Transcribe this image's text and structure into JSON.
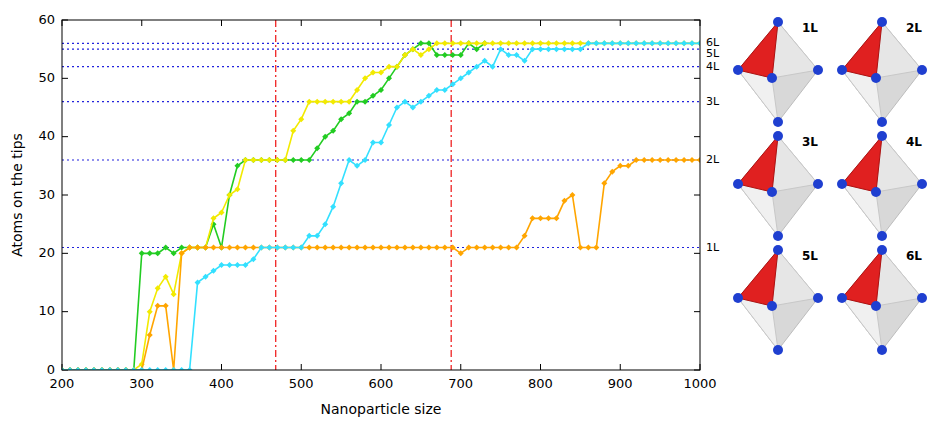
{
  "chart_data": {
    "type": "line",
    "x_label": "Nanoparticle size",
    "y_label": "Atoms on the tips",
    "xlim": [
      200,
      1000
    ],
    "ylim": [
      0,
      60
    ],
    "xticks": [
      200,
      300,
      400,
      500,
      600,
      700,
      800,
      900,
      1000
    ],
    "yticks": [
      0,
      10,
      20,
      30,
      40,
      50,
      60
    ],
    "marker": "diamond",
    "x": [
      200,
      210,
      220,
      230,
      240,
      250,
      260,
      270,
      280,
      290,
      300,
      310,
      320,
      330,
      340,
      350,
      360,
      370,
      380,
      390,
      400,
      410,
      420,
      430,
      440,
      450,
      460,
      470,
      480,
      490,
      500,
      510,
      520,
      530,
      540,
      550,
      560,
      570,
      580,
      590,
      600,
      610,
      620,
      630,
      640,
      650,
      660,
      670,
      680,
      690,
      700,
      710,
      720,
      730,
      740,
      750,
      760,
      770,
      780,
      790,
      800,
      810,
      820,
      830,
      840,
      850,
      860,
      870,
      880,
      890,
      900,
      910,
      920,
      930,
      940,
      950,
      960,
      970,
      980,
      990,
      1000
    ],
    "series": [
      {
        "color": "#22cc22",
        "values": [
          0,
          0,
          0,
          0,
          0,
          0,
          0,
          0,
          0,
          0,
          20,
          20,
          20,
          21,
          20,
          21,
          21,
          21,
          21,
          25,
          21,
          30,
          35,
          36,
          36,
          36,
          36,
          36,
          36,
          36,
          36,
          36,
          38,
          40,
          41,
          43,
          44,
          46,
          46,
          47,
          48,
          50,
          52,
          54,
          55,
          56,
          56,
          54,
          54,
          54,
          54,
          56,
          55,
          56,
          null,
          null,
          null,
          null,
          null,
          null,
          null,
          null,
          null,
          null,
          null,
          null,
          null,
          null,
          null,
          null,
          null,
          null,
          null,
          null,
          null,
          null,
          null,
          null,
          null,
          null,
          null
        ]
      },
      {
        "color": "#f2ea00",
        "values": [
          0,
          0,
          0,
          0,
          0,
          0,
          0,
          0,
          0,
          0,
          1,
          10,
          14,
          16,
          13,
          20,
          21,
          21,
          21,
          26,
          27,
          30,
          31,
          36,
          36,
          36,
          36,
          36,
          36,
          41,
          43,
          46,
          46,
          46,
          46,
          46,
          46,
          48,
          50,
          51,
          51,
          52,
          52,
          54,
          55,
          54,
          55,
          56,
          56,
          56,
          56,
          56,
          56,
          56,
          56,
          56,
          56,
          56,
          56,
          56,
          56,
          56,
          56,
          56,
          56,
          56,
          56,
          56,
          56,
          56,
          56,
          56,
          56,
          56,
          56,
          56,
          56,
          56,
          56,
          56,
          56
        ]
      },
      {
        "color": "#ffa500",
        "values": [
          0,
          0,
          0,
          0,
          0,
          0,
          0,
          0,
          0,
          0,
          0,
          6,
          11,
          11,
          0,
          20,
          21,
          21,
          21,
          21,
          21,
          21,
          21,
          21,
          21,
          21,
          21,
          21,
          21,
          21,
          21,
          21,
          21,
          21,
          21,
          21,
          21,
          21,
          21,
          21,
          21,
          21,
          21,
          21,
          21,
          21,
          21,
          21,
          21,
          21,
          20,
          21,
          21,
          21,
          21,
          21,
          21,
          21,
          23,
          26,
          26,
          26,
          26,
          29,
          30,
          21,
          21,
          21,
          32,
          34,
          35,
          35,
          36,
          36,
          36,
          36,
          36,
          36,
          36,
          36,
          36
        ]
      },
      {
        "color": "#33e0ff",
        "values": [
          0,
          0,
          0,
          0,
          0,
          0,
          0,
          0,
          0,
          0,
          0,
          0,
          0,
          0,
          0,
          0,
          0,
          15,
          16,
          17,
          18,
          18,
          18,
          18,
          19,
          21,
          21,
          21,
          21,
          21,
          21,
          23,
          23,
          25,
          28,
          32,
          36,
          35,
          36,
          39,
          39,
          42,
          45,
          46,
          45,
          46,
          47,
          48,
          48,
          49,
          50,
          51,
          52,
          53,
          52,
          55,
          54,
          54,
          53,
          55,
          55,
          55,
          55,
          55,
          55,
          55,
          56,
          56,
          56,
          56,
          56,
          56,
          56,
          56,
          56,
          56,
          56,
          56,
          56,
          56,
          56
        ]
      }
    ],
    "hlines": [
      {
        "value": 21,
        "label": "1L"
      },
      {
        "value": 36,
        "label": "2L"
      },
      {
        "value": 46,
        "label": "3L"
      },
      {
        "value": 52,
        "label": "4L"
      },
      {
        "value": 55,
        "label": "5L"
      },
      {
        "value": 56,
        "label": "6L"
      }
    ],
    "vlines": [
      468,
      688
    ]
  },
  "structures": {
    "labels": [
      "1L",
      "2L",
      "3L",
      "4L",
      "5L",
      "6L"
    ]
  }
}
